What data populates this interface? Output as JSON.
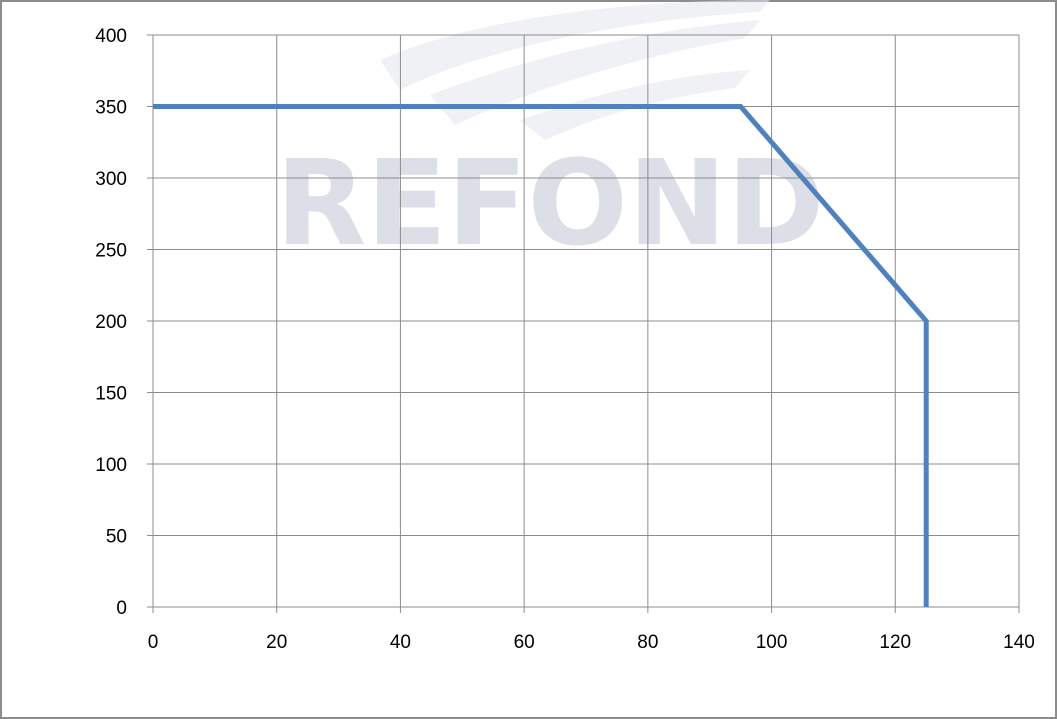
{
  "watermark": {
    "text": "REFOND",
    "color": "#dcdee8"
  },
  "chart_data": {
    "type": "line",
    "title": "",
    "xlabel": "",
    "ylabel": "",
    "xlim": [
      0,
      140
    ],
    "ylim": [
      0,
      400
    ],
    "x_ticks": [
      0,
      20,
      40,
      60,
      80,
      100,
      120,
      140
    ],
    "y_ticks": [
      0,
      50,
      100,
      150,
      200,
      250,
      300,
      350,
      400
    ],
    "x_tick_labels": [
      "0",
      "20",
      "40",
      "60",
      "80",
      "100",
      "120",
      "140"
    ],
    "y_tick_labels": [
      "0",
      "50",
      "100",
      "150",
      "200",
      "250",
      "300",
      "350",
      "400"
    ],
    "grid": true,
    "legend": "none",
    "series": [
      {
        "color": "#4f81bd",
        "points": [
          [
            0,
            350
          ],
          [
            95,
            350
          ],
          [
            125,
            200
          ],
          [
            125,
            0
          ]
        ]
      }
    ]
  }
}
